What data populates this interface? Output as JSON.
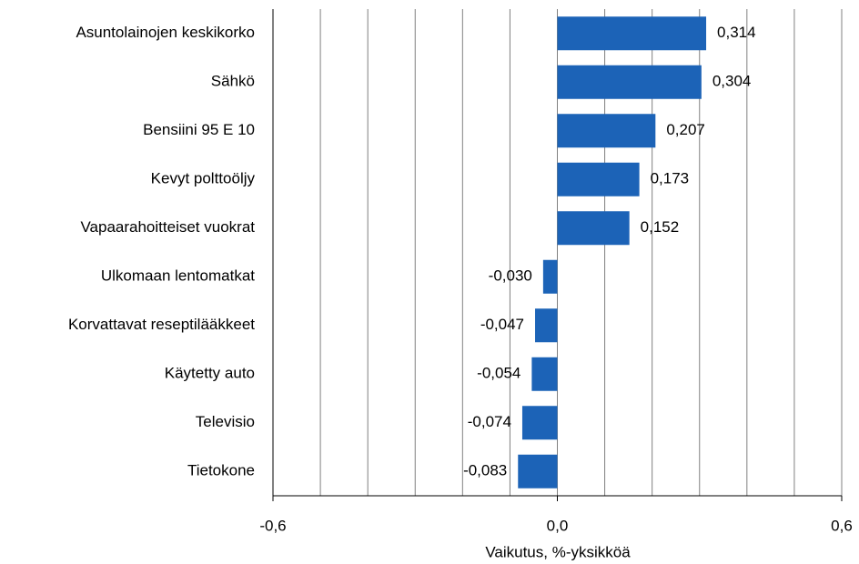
{
  "chart_data": {
    "type": "barh",
    "categories": [
      "Asuntolainojen keskikorko",
      "Sähkö",
      "Bensiini 95 E 10",
      "Kevyt polttoöljy",
      "Vapaarahoitteiset vuokrat",
      "Ulkomaan lentomatkat",
      "Korvattavat reseptilääkkeet",
      "Käytetty auto",
      "Televisio",
      "Tietokone"
    ],
    "values": [
      0.314,
      0.304,
      0.207,
      0.173,
      0.152,
      -0.03,
      -0.047,
      -0.054,
      -0.074,
      -0.083
    ],
    "value_labels": [
      "0,314",
      "0,304",
      "0,207",
      "0,173",
      "0,152",
      "-0,030",
      "-0,047",
      "-0,054",
      "-0,074",
      "-0,083"
    ],
    "color": "#1c63b7",
    "xlabel": "Vaikutus, %-yksikköä",
    "xlim": [
      -0.6,
      0.6
    ],
    "xticks": [
      {
        "value": -0.6,
        "label": "-0,6"
      },
      {
        "value": 0,
        "label": "0,0"
      },
      {
        "value": 0.6,
        "label": "0,6"
      }
    ],
    "minor_xticks": [
      -0.5,
      -0.4,
      -0.3,
      -0.2,
      -0.1,
      0.1,
      0.2,
      0.3,
      0.4,
      0.5
    ],
    "grid": true
  }
}
